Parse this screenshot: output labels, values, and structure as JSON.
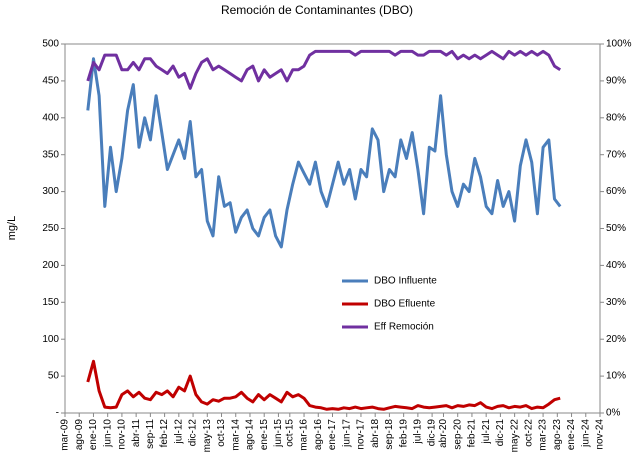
{
  "chart_data": {
    "type": "line",
    "title": "Remoción de Contaminantes (DBO)",
    "ylabel": "mg/L",
    "x": [
      "2009-11",
      "2010-01",
      "2010-03",
      "2010-05",
      "2010-07",
      "2010-09",
      "2010-11",
      "2011-01",
      "2011-03",
      "2011-05",
      "2011-07",
      "2011-09",
      "2011-11",
      "2012-01",
      "2012-03",
      "2012-05",
      "2012-07",
      "2012-09",
      "2012-11",
      "2013-01",
      "2013-03",
      "2013-05",
      "2013-07",
      "2013-09",
      "2013-11",
      "2014-01",
      "2014-03",
      "2014-05",
      "2014-07",
      "2014-09",
      "2014-11",
      "2015-01",
      "2015-03",
      "2015-05",
      "2015-07",
      "2015-09",
      "2015-11",
      "2016-01",
      "2016-03",
      "2016-05",
      "2016-07",
      "2016-09",
      "2016-11",
      "2017-01",
      "2017-03",
      "2017-05",
      "2017-07",
      "2017-09",
      "2017-11",
      "2018-01",
      "2018-03",
      "2018-05",
      "2018-07",
      "2018-09",
      "2018-11",
      "2019-01",
      "2019-03",
      "2019-05",
      "2019-07",
      "2019-09",
      "2019-11",
      "2020-01",
      "2020-03",
      "2020-05",
      "2020-07",
      "2020-09",
      "2020-11",
      "2021-01",
      "2021-03",
      "2021-05",
      "2021-07",
      "2021-09",
      "2021-11",
      "2022-01",
      "2022-03",
      "2022-05",
      "2022-07",
      "2022-09",
      "2022-11",
      "2023-01",
      "2023-03",
      "2023-05",
      "2023-07",
      "2023-09"
    ],
    "series": [
      {
        "name": "DBO Influente",
        "color": "#4a7ebb",
        "values": [
          410,
          480,
          430,
          280,
          360,
          300,
          345,
          410,
          445,
          360,
          400,
          370,
          430,
          380,
          330,
          350,
          370,
          345,
          395,
          320,
          330,
          260,
          240,
          320,
          280,
          285,
          245,
          265,
          275,
          250,
          240,
          265,
          275,
          240,
          225,
          275,
          310,
          340,
          325,
          310,
          340,
          300,
          280,
          310,
          340,
          310,
          330,
          290,
          330,
          320,
          385,
          370,
          300,
          330,
          320,
          370,
          345,
          380,
          330,
          270,
          360,
          355,
          430,
          350,
          300,
          280,
          310,
          300,
          345,
          320,
          280,
          270,
          315,
          280,
          300,
          260,
          335,
          370,
          340,
          270,
          360,
          370,
          290,
          280
        ]
      },
      {
        "name": "DBO Efluente",
        "color": "#c00000",
        "values": [
          42,
          70,
          30,
          8,
          7,
          8,
          25,
          30,
          22,
          28,
          20,
          18,
          28,
          25,
          30,
          22,
          35,
          30,
          50,
          25,
          15,
          12,
          18,
          16,
          20,
          20,
          22,
          28,
          20,
          15,
          25,
          18,
          25,
          20,
          15,
          28,
          22,
          25,
          20,
          10,
          8,
          7,
          5,
          6,
          5,
          7,
          6,
          8,
          6,
          7,
          8,
          6,
          5,
          7,
          9,
          8,
          7,
          6,
          10,
          8,
          7,
          8,
          9,
          10,
          7,
          10,
          9,
          11,
          10,
          14,
          8,
          6,
          9,
          10,
          7,
          9,
          8,
          10,
          6,
          8,
          7,
          12,
          18,
          20
        ]
      },
      {
        "name": "Eff Remoción",
        "color": "#7030a0",
        "axis": "y2",
        "values": [
          90,
          95,
          93,
          97,
          97,
          97,
          93,
          93,
          95,
          93,
          96,
          96,
          94,
          93,
          92,
          94,
          91,
          92,
          88,
          92,
          95,
          96,
          93,
          94,
          93,
          92,
          91,
          90,
          93,
          94,
          90,
          93,
          91,
          92,
          93,
          90,
          93,
          93,
          94,
          97,
          98,
          98,
          98,
          98,
          98,
          98,
          98,
          97,
          98,
          98,
          98,
          98,
          98,
          98,
          97,
          98,
          98,
          98,
          97,
          97,
          98,
          98,
          98,
          97,
          98,
          96,
          97,
          96,
          97,
          96,
          97,
          98,
          97,
          96,
          98,
          97,
          98,
          97,
          98,
          97,
          98,
          97,
          94,
          93
        ]
      }
    ],
    "xlim": [
      "2009-03",
      "2024-11"
    ],
    "xticks": [
      {
        "value": "2009-03",
        "label": "mar-09"
      },
      {
        "value": "2009-08",
        "label": "ago-09"
      },
      {
        "value": "2010-01",
        "label": "ene-10"
      },
      {
        "value": "2010-06",
        "label": "jun-10"
      },
      {
        "value": "2010-11",
        "label": "nov-10"
      },
      {
        "value": "2011-04",
        "label": "abr-11"
      },
      {
        "value": "2011-09",
        "label": "sep-11"
      },
      {
        "value": "2012-02",
        "label": "feb-12"
      },
      {
        "value": "2012-07",
        "label": "jul-12"
      },
      {
        "value": "2012-12",
        "label": "dic-12"
      },
      {
        "value": "2013-05",
        "label": "may-13"
      },
      {
        "value": "2013-10",
        "label": "oct-13"
      },
      {
        "value": "2014-03",
        "label": "mar-14"
      },
      {
        "value": "2014-08",
        "label": "ago-14"
      },
      {
        "value": "2015-01",
        "label": "ene-15"
      },
      {
        "value": "2015-06",
        "label": "jun-15"
      },
      {
        "value": "2015-10",
        "label": "oct-15"
      },
      {
        "value": "2016-03",
        "label": "mar-16"
      },
      {
        "value": "2016-08",
        "label": "ago-16"
      },
      {
        "value": "2017-01",
        "label": "ene-17"
      },
      {
        "value": "2017-06",
        "label": "jun-17"
      },
      {
        "value": "2017-11",
        "label": "nov-17"
      },
      {
        "value": "2018-04",
        "label": "abr-18"
      },
      {
        "value": "2018-09",
        "label": "sep-18"
      },
      {
        "value": "2019-02",
        "label": "feb-19"
      },
      {
        "value": "2019-07",
        "label": "jul-19"
      },
      {
        "value": "2019-12",
        "label": "dic-19"
      },
      {
        "value": "2020-04",
        "label": "abr-20"
      },
      {
        "value": "2020-09",
        "label": "sep-20"
      },
      {
        "value": "2021-02",
        "label": "feb-21"
      },
      {
        "value": "2021-07",
        "label": "jul-21"
      },
      {
        "value": "2021-12",
        "label": "dic-21"
      },
      {
        "value": "2022-05",
        "label": "may-22"
      },
      {
        "value": "2022-10",
        "label": "oct-22"
      },
      {
        "value": "2023-03",
        "label": "mar-23"
      },
      {
        "value": "2023-08",
        "label": "ago-23"
      },
      {
        "value": "2024-01",
        "label": "ene-24"
      },
      {
        "value": "2024-06",
        "label": "jun-24"
      },
      {
        "value": "2024-11",
        "label": "nov-24"
      }
    ],
    "ylim": [
      0,
      500
    ],
    "yticks": [
      {
        "value": 0,
        "label": "-"
      },
      50,
      100,
      150,
      200,
      250,
      300,
      350,
      400,
      450,
      500
    ],
    "y2lim": [
      0,
      100
    ],
    "y2ticks": [
      {
        "value": 0,
        "label": "0%"
      },
      {
        "value": 10,
        "label": "10%"
      },
      {
        "value": 20,
        "label": "20%"
      },
      {
        "value": 30,
        "label": "30%"
      },
      {
        "value": 40,
        "label": "40%"
      },
      {
        "value": 50,
        "label": "50%"
      },
      {
        "value": 60,
        "label": "60%"
      },
      {
        "value": 70,
        "label": "70%"
      },
      {
        "value": 80,
        "label": "80%"
      },
      {
        "value": 90,
        "label": "90%"
      },
      {
        "value": 100,
        "label": "100%"
      }
    ],
    "grid": false,
    "legend": "center"
  }
}
